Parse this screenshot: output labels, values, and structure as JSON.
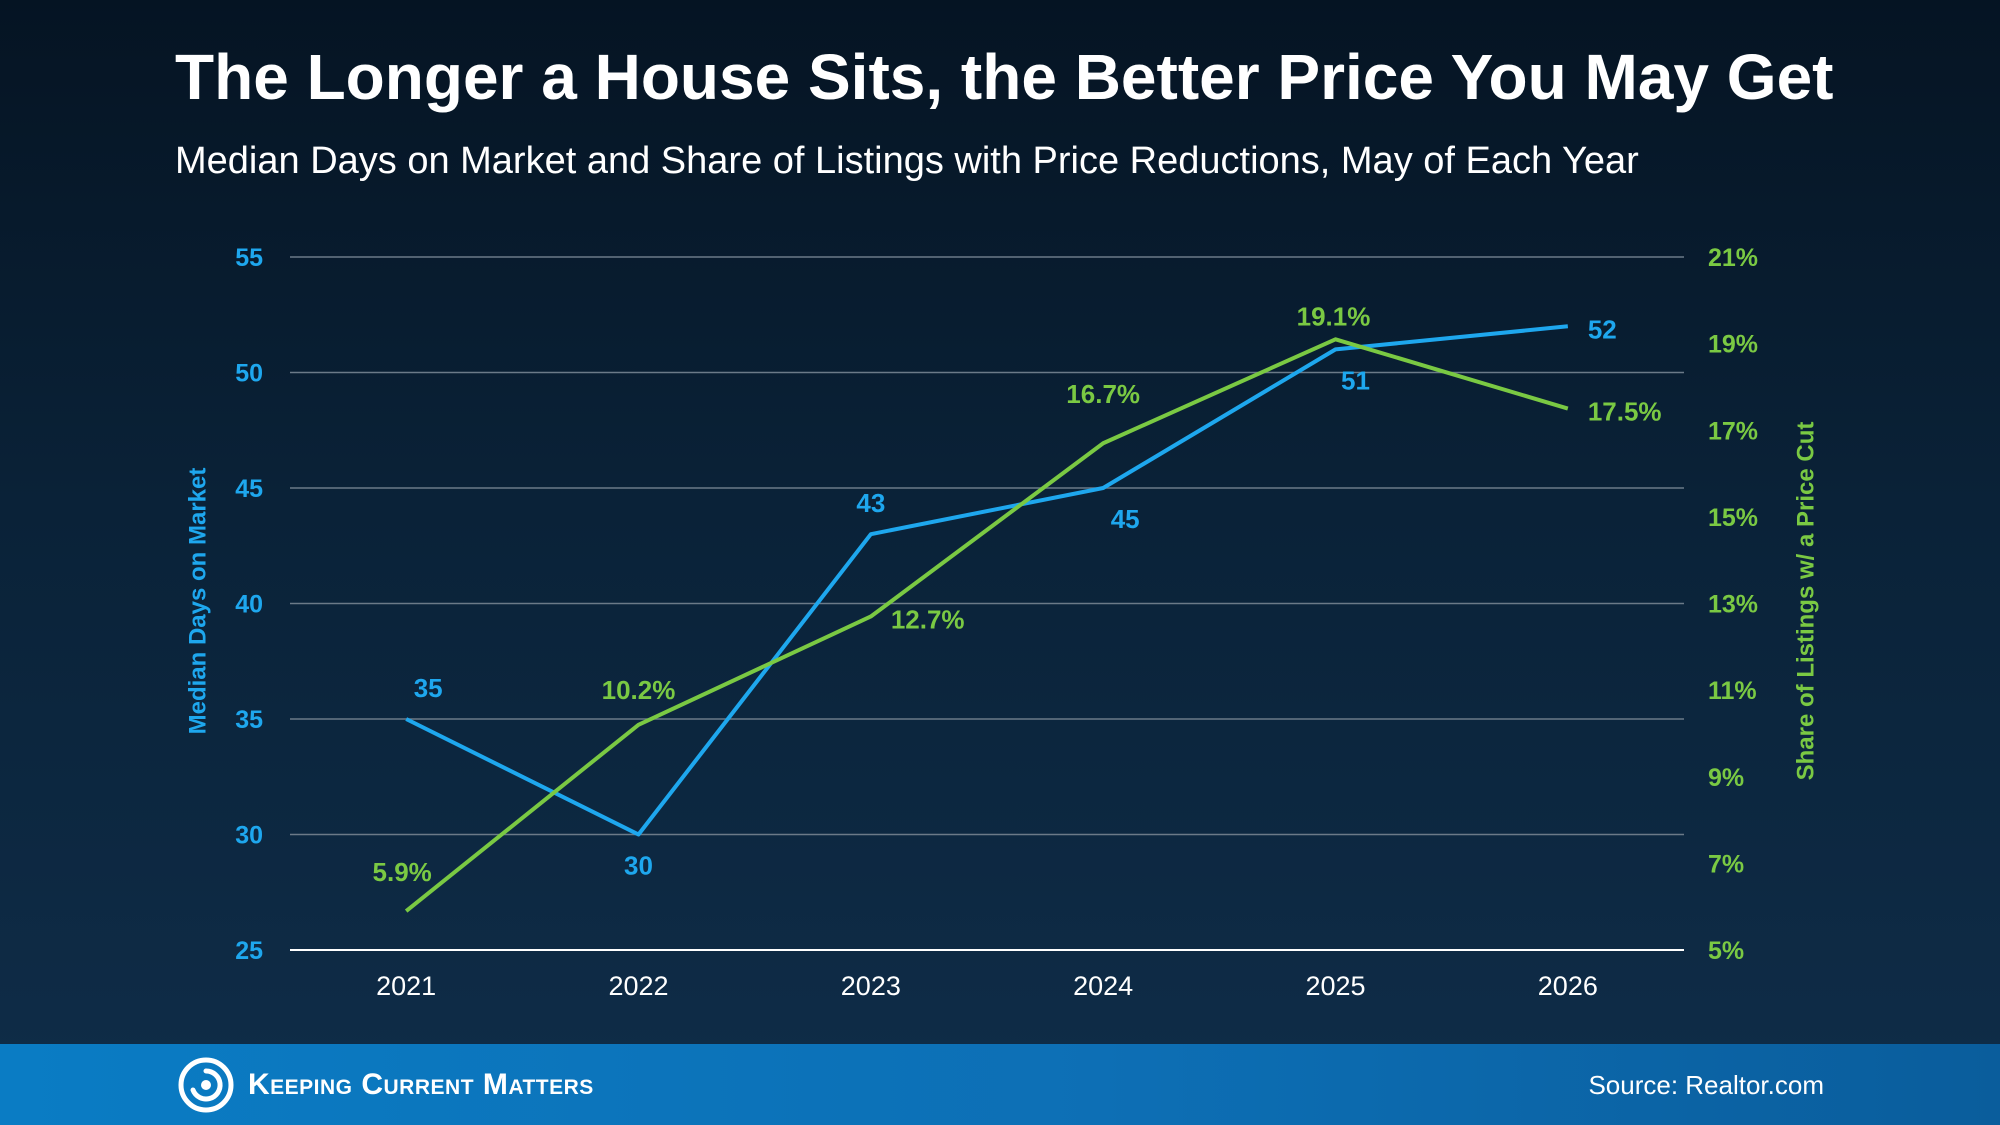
{
  "header": {
    "title": "The Longer a House Sits, the Better Price You May Get",
    "subtitle": "Median Days on Market and Share of Listings with Price Reductions, May of Each Year"
  },
  "footer": {
    "brand": "Keeping Current Matters",
    "source": "Source: Realtor.com",
    "logo_icon": "kcm-swirl-icon"
  },
  "colors": {
    "days_series": "#1ea7ee",
    "price_cut_series": "#7ac943",
    "grid": "#6b7a88",
    "axis": "#ffffff"
  },
  "chart_data": {
    "type": "line",
    "categories": [
      "2021",
      "2022",
      "2023",
      "2024",
      "2025",
      "2026"
    ],
    "series": [
      {
        "axis": "left",
        "values": [
          35,
          30,
          43,
          45,
          51,
          52
        ],
        "labels": [
          "35",
          "30",
          "43",
          "45",
          "51",
          "52"
        ]
      },
      {
        "axis": "right",
        "values": [
          5.9,
          10.2,
          12.7,
          16.7,
          19.1,
          17.5
        ],
        "labels": [
          "5.9%",
          "10.2%",
          "12.7%",
          "16.7%",
          "19.1%",
          "17.5%"
        ]
      }
    ],
    "y_left": {
      "label": "Median Days on Market",
      "range": [
        25,
        55
      ],
      "ticks": [
        "25",
        "30",
        "35",
        "40",
        "45",
        "50",
        "55"
      ]
    },
    "y_right": {
      "label": "Share of Listings w/ a Price Cut",
      "range": [
        5,
        21
      ],
      "ticks": [
        "5%",
        "7%",
        "9%",
        "11%",
        "13%",
        "15%",
        "17%",
        "19%",
        "21%"
      ]
    },
    "grid": true,
    "legend": "none"
  }
}
